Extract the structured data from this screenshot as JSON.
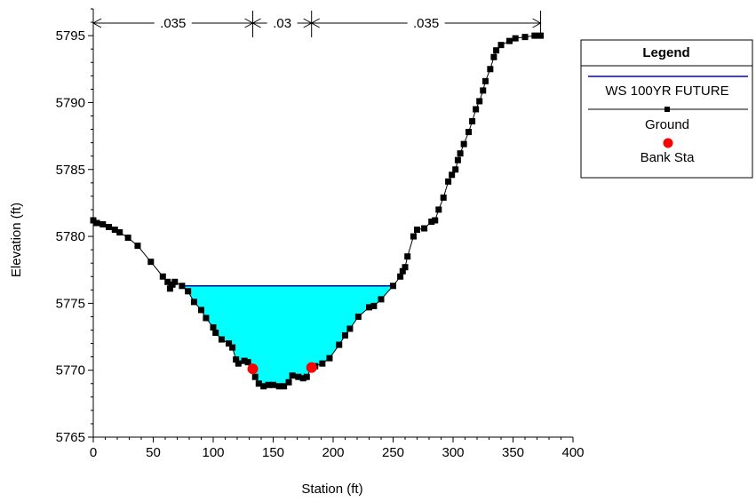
{
  "chart_data": {
    "type": "line",
    "xlabel": "Station (ft)",
    "ylabel": "Elevation (ft)",
    "xlim": [
      0,
      400
    ],
    "ylim": [
      5765,
      5797
    ],
    "x_ticks": [
      0,
      50,
      100,
      150,
      200,
      250,
      300,
      350,
      400
    ],
    "y_ticks": [
      5765,
      5770,
      5775,
      5780,
      5785,
      5790,
      5795
    ],
    "grid": false,
    "legend_placement": "right",
    "legend": {
      "title": "Legend",
      "entries": [
        "WS 100YR FUTURE",
        "Ground",
        "Bank Sta"
      ]
    },
    "colors": {
      "water_fill": "#00ffff",
      "water_surface": "#0000cc",
      "ground": "#000000",
      "bank": "#ff0000"
    },
    "water_surface": {
      "name": "WS 100YR FUTURE",
      "elevation": 5776.3,
      "x_start": 73,
      "x_end": 250
    },
    "ground": {
      "name": "Ground",
      "points": [
        [
          0,
          5781.2
        ],
        [
          3,
          5781.0
        ],
        [
          8,
          5780.9
        ],
        [
          13,
          5780.7
        ],
        [
          18,
          5780.5
        ],
        [
          22,
          5780.3
        ],
        [
          29,
          5779.9
        ],
        [
          37,
          5779.3
        ],
        [
          48,
          5778.1
        ],
        [
          58,
          5777.0
        ],
        [
          62,
          5776.6
        ],
        [
          64,
          5776.1
        ],
        [
          66,
          5776.4
        ],
        [
          68,
          5776.6
        ],
        [
          74,
          5776.3
        ],
        [
          79,
          5775.9
        ],
        [
          84,
          5775.1
        ],
        [
          90,
          5774.5
        ],
        [
          94,
          5773.9
        ],
        [
          100,
          5773.2
        ],
        [
          102,
          5772.8
        ],
        [
          107,
          5772.3
        ],
        [
          113,
          5772.0
        ],
        [
          116,
          5771.7
        ],
        [
          119,
          5770.8
        ],
        [
          121,
          5770.5
        ],
        [
          126,
          5770.7
        ],
        [
          129,
          5770.6
        ],
        [
          132,
          5770.2
        ],
        [
          135,
          5769.5
        ],
        [
          138,
          5769.0
        ],
        [
          142,
          5768.8
        ],
        [
          146,
          5768.9
        ],
        [
          150,
          5768.9
        ],
        [
          155,
          5768.8
        ],
        [
          159,
          5768.8
        ],
        [
          163,
          5769.1
        ],
        [
          166,
          5769.6
        ],
        [
          171,
          5769.5
        ],
        [
          175,
          5769.4
        ],
        [
          178,
          5769.5
        ],
        [
          182,
          5770.2
        ],
        [
          185,
          5770.3
        ],
        [
          191,
          5770.5
        ],
        [
          197,
          5770.9
        ],
        [
          205,
          5771.9
        ],
        [
          210,
          5772.6
        ],
        [
          214,
          5773.1
        ],
        [
          221,
          5774.0
        ],
        [
          230,
          5774.7
        ],
        [
          234,
          5774.8
        ],
        [
          240,
          5775.3
        ],
        [
          250,
          5776.3
        ],
        [
          256,
          5777.0
        ],
        [
          258,
          5777.4
        ],
        [
          260,
          5777.7
        ],
        [
          262,
          5778.5
        ],
        [
          267,
          5780.0
        ],
        [
          270,
          5780.5
        ],
        [
          276,
          5780.6
        ],
        [
          282,
          5781.1
        ],
        [
          285,
          5781.2
        ],
        [
          288,
          5782.0
        ],
        [
          292,
          5782.9
        ],
        [
          296,
          5784.1
        ],
        [
          299,
          5784.6
        ],
        [
          302,
          5785.0
        ],
        [
          304,
          5785.7
        ],
        [
          306,
          5786.2
        ],
        [
          309,
          5786.9
        ],
        [
          313,
          5787.8
        ],
        [
          316,
          5788.6
        ],
        [
          319,
          5789.5
        ],
        [
          322,
          5790.1
        ],
        [
          325,
          5790.9
        ],
        [
          327,
          5791.6
        ],
        [
          331,
          5792.5
        ],
        [
          334,
          5793.4
        ],
        [
          336,
          5793.9
        ],
        [
          340,
          5794.3
        ],
        [
          347,
          5794.6
        ],
        [
          352,
          5794.8
        ],
        [
          360,
          5794.9
        ],
        [
          368,
          5795.0
        ],
        [
          373,
          5795.0
        ]
      ]
    },
    "bank_stations": {
      "name": "Bank Sta",
      "points": [
        [
          133,
          5770.1
        ],
        [
          182,
          5770.2
        ]
      ]
    },
    "manning_n": [
      {
        "label": ".035",
        "x_from": 0,
        "x_to": 133
      },
      {
        "label": ".03",
        "x_from": 133,
        "x_to": 182
      },
      {
        "label": ".035",
        "x_from": 182,
        "x_to": 373
      }
    ]
  }
}
